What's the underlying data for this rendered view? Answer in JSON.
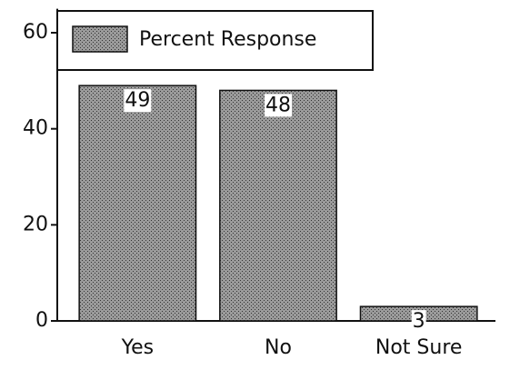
{
  "chart_data": {
    "type": "bar",
    "categories": [
      "Yes",
      "No",
      "Not Sure"
    ],
    "series": [
      {
        "name": "Percent Response",
        "color": "#8a8a8a",
        "values": [
          49,
          48,
          3
        ]
      }
    ],
    "ylim": [
      0,
      65
    ],
    "yticks": [
      0,
      20,
      40,
      60
    ],
    "legend": "top-left"
  }
}
